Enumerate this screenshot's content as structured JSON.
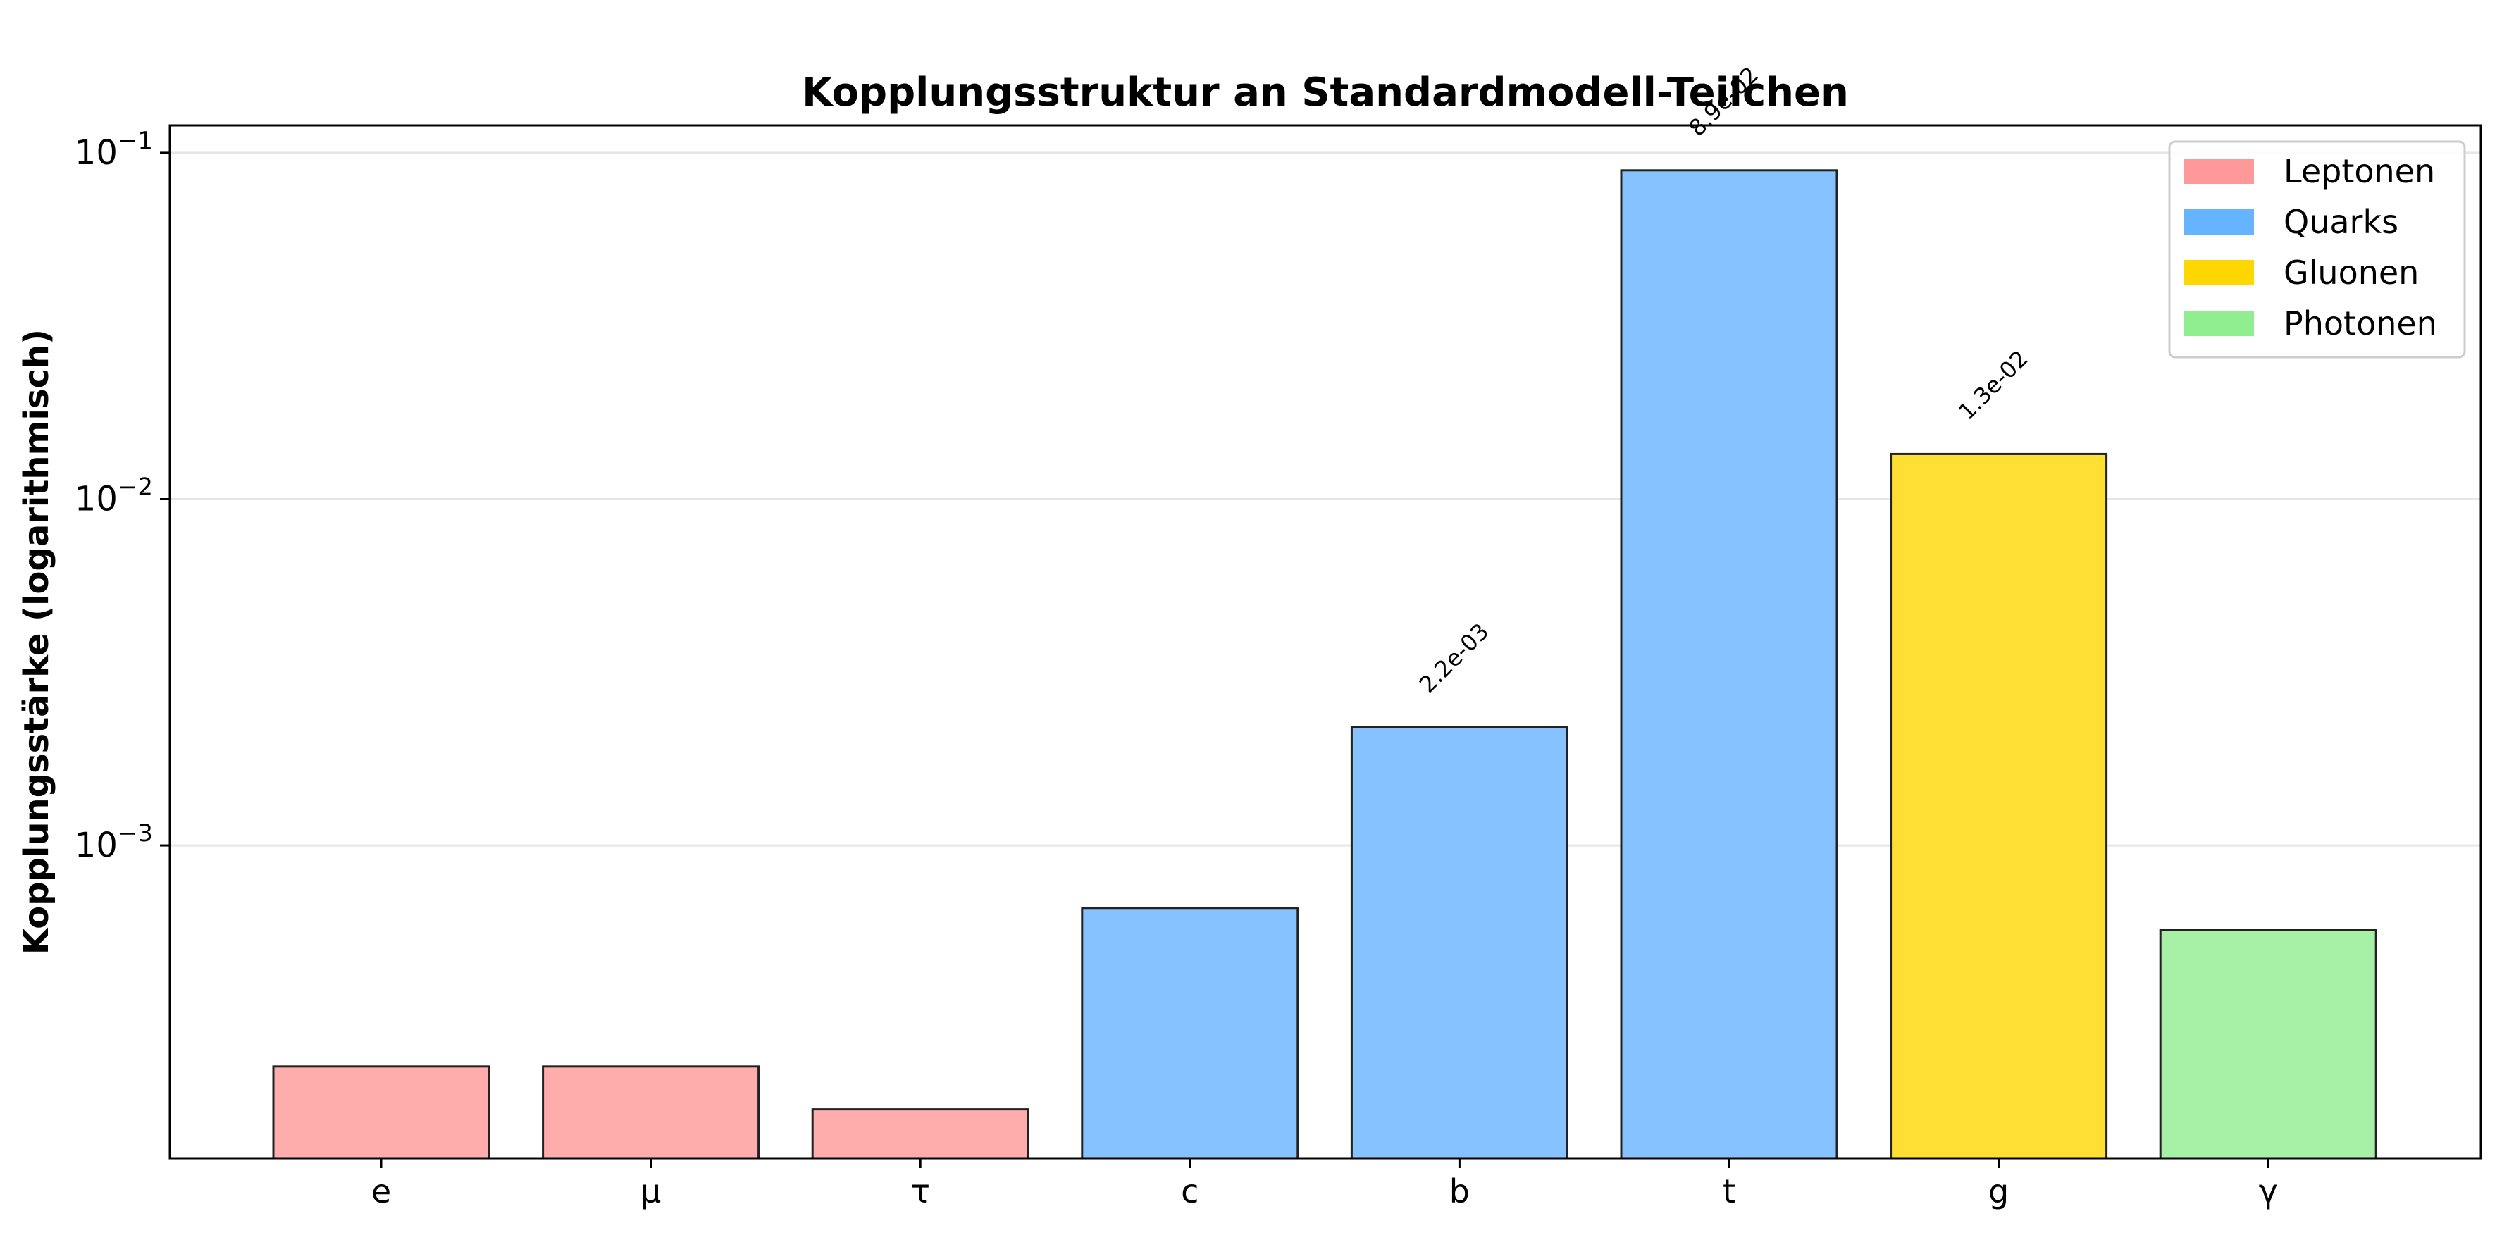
{
  "chart_data": {
    "type": "bar",
    "title": "Kopplungsstruktur an Standardmodell-Teilchen",
    "xlabel": "",
    "ylabel": "Kopplungsstärke (logarithmisch)",
    "yscale": "log",
    "ylim": [
      0.000125,
      0.12
    ],
    "yticks": [
      {
        "value": 0.001,
        "base": "10",
        "exponent": "−3"
      },
      {
        "value": 0.01,
        "base": "10",
        "exponent": "−2"
      },
      {
        "value": 0.1,
        "base": "10",
        "exponent": "−1"
      }
    ],
    "grid": "horizontal",
    "legend_position": "top-right",
    "categories": [
      "e",
      "μ",
      "τ",
      "c",
      "b",
      "t",
      "g",
      "γ"
    ],
    "values": [
      0.00023,
      0.00023,
      0.000173,
      0.00066,
      0.0022,
      0.089,
      0.0135,
      0.00057
    ],
    "groups": [
      "Leptonen",
      "Leptonen",
      "Leptonen",
      "Quarks",
      "Quarks",
      "Quarks",
      "Gluonen",
      "Photonen"
    ],
    "data_labels": [
      "",
      "",
      "",
      "",
      "2.2e-03",
      "8.9e-02",
      "1.3e-02",
      ""
    ],
    "legend": [
      {
        "name": "Leptonen",
        "color": "#ff9999"
      },
      {
        "name": "Quarks",
        "color": "#66b3ff"
      },
      {
        "name": "Gluonen",
        "color": "#ffd700"
      },
      {
        "name": "Photonen",
        "color": "#90ee90"
      }
    ],
    "bar_fill_colors": {
      "Leptonen": "#ffacac",
      "Quarks": "#85c2ff",
      "Gluonen": "#ffdf33",
      "Photonen": "#a6f1a6"
    },
    "edge_color": "#222222",
    "grid_color": "#e6e6e6"
  }
}
